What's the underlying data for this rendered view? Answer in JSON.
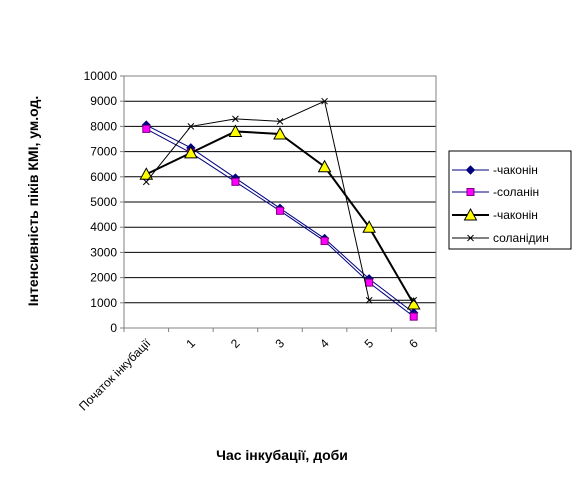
{
  "chart_data": {
    "type": "line",
    "title": "",
    "xlabel": "Час інкубації, доби",
    "ylabel": "Інтенсивність піків КМІ, ум.од.",
    "categories": [
      "Початок інкубації",
      "1",
      "2",
      "3",
      "4",
      "5",
      "6"
    ],
    "ylim": [
      0,
      10000
    ],
    "yticks": [
      "0",
      "1000",
      "2000",
      "3000",
      "4000",
      "5000",
      "6000",
      "7000",
      "8000",
      "9000",
      "10000"
    ],
    "grid": true,
    "legend_position": "right",
    "series": [
      {
        "name": "-чаконін",
        "marker": "diamond",
        "color": "#000080",
        "values": [
          8050,
          7150,
          5950,
          4750,
          3550,
          1950,
          600
        ]
      },
      {
        "name": "-соланін",
        "marker": "square",
        "color": "#ff00ff",
        "values": [
          7900,
          6950,
          5800,
          4650,
          3450,
          1800,
          450
        ]
      },
      {
        "name": "-чаконін",
        "marker": "triangle",
        "color": "#ffff00",
        "values": [
          6100,
          6950,
          7800,
          7700,
          6400,
          4000,
          950
        ]
      },
      {
        "name": "соланідин",
        "marker": "x",
        "color": "#000000",
        "values": [
          5800,
          8000,
          8300,
          8200,
          9000,
          1100,
          1100
        ]
      }
    ]
  }
}
